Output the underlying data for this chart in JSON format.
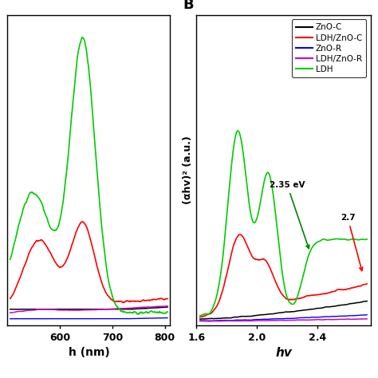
{
  "panel_A": {
    "xlabel": "h (nm)",
    "xlim": [
      500,
      810
    ],
    "xticks": [
      600,
      700,
      800
    ],
    "xtick_labels": [
      "600",
      "700",
      "800"
    ],
    "colors": {
      "ZnO-C": "#000000",
      "LDH/ZnO-C": "#ff0000",
      "ZnO-R": "#0000ff",
      "LDH/ZnO-R": "#cc00cc",
      "LDH": "#00cc00"
    }
  },
  "panel_B": {
    "title": "B",
    "xlabel": "hv",
    "ylabel": "(αhv)² (a.u.)",
    "xlim": [
      1.6,
      2.75
    ],
    "xticks": [
      1.6,
      2.0,
      2.4
    ],
    "xtick_labels": [
      "1.6",
      "2.0",
      "2.4"
    ],
    "ann1_text": "2.35 eV",
    "ann2_text": "2.7",
    "colors": {
      "ZnO-C": "#000000",
      "LDH/ZnO-C": "#ff0000",
      "ZnO-R": "#0000ff",
      "LDH/ZnO-R": "#cc00cc",
      "LDH": "#00cc00"
    }
  },
  "legend_entries": [
    "ZnO-C",
    "LDH/ZnO-C",
    "ZnO-R",
    "LDH/ZnO-R",
    "LDH"
  ],
  "legend_colors": [
    "#000000",
    "#ff0000",
    "#0000ff",
    "#cc00cc",
    "#00cc00"
  ],
  "background_color": "#ffffff"
}
